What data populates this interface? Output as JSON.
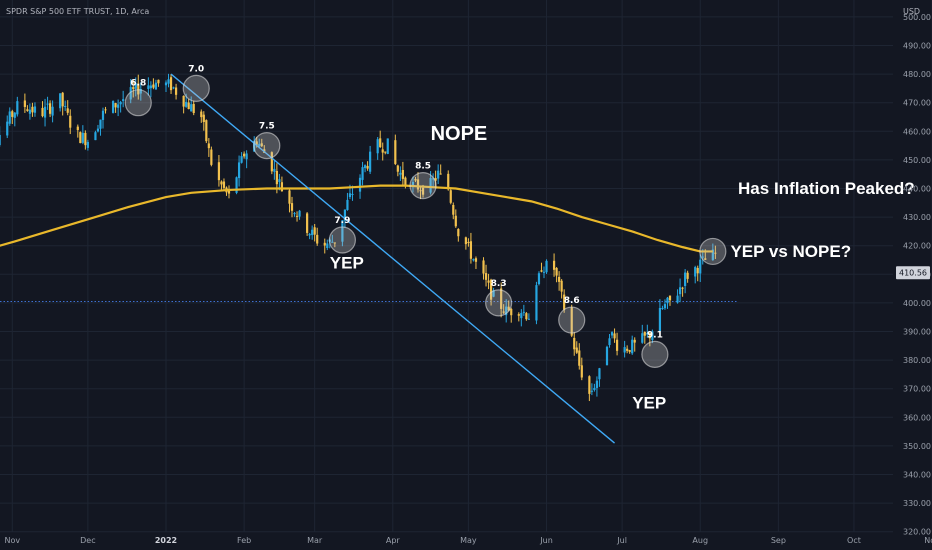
{
  "header": {
    "symbol": "SPDR S&P 500 ETF TRUST, 1D, Arca",
    "currency": "USD"
  },
  "last_price": "410.56",
  "colors": {
    "up": "#26a6e0",
    "down": "#f2c14e",
    "ma": "#e9b82b",
    "trend": "#3fa9f5",
    "dotted": "#3d6fd0"
  },
  "chart_data": {
    "type": "candlestick",
    "y_ticks": [
      "320.00",
      "330.00",
      "340.00",
      "350.00",
      "360.00",
      "370.00",
      "380.00",
      "390.00",
      "400.00",
      "410.00",
      "420.00",
      "430.00",
      "440.00",
      "450.00",
      "460.00",
      "470.00",
      "480.00",
      "490.00",
      "500.00"
    ],
    "ylim": [
      315,
      508
    ],
    "x_ticks": [
      {
        "label": "Nov",
        "day": -61
      },
      {
        "label": "Dec",
        "day": -31
      },
      {
        "label": "2022",
        "day": 0,
        "bold": true
      },
      {
        "label": "Feb",
        "day": 31
      },
      {
        "label": "Mar",
        "day": 59
      },
      {
        "label": "Apr",
        "day": 90
      },
      {
        "label": "May",
        "day": 120
      },
      {
        "label": "Jun",
        "day": 151
      },
      {
        "label": "Jul",
        "day": 181
      },
      {
        "label": "Aug",
        "day": 212
      },
      {
        "label": "Sep",
        "day": 243
      },
      {
        "label": "Oct",
        "day": 273
      },
      {
        "label": "Nov",
        "day": 304
      }
    ],
    "price_path": [
      [
        -74,
        453
      ],
      [
        -66,
        459
      ],
      [
        -58,
        470
      ],
      [
        -50,
        466
      ],
      [
        -42,
        471
      ],
      [
        -36,
        459
      ],
      [
        -31,
        457
      ],
      [
        -25,
        466
      ],
      [
        -19,
        470
      ],
      [
        -11,
        475
      ],
      [
        -5,
        477
      ],
      [
        2,
        476
      ],
      [
        8,
        470
      ],
      [
        14,
        465
      ],
      [
        19,
        445
      ],
      [
        25,
        437
      ],
      [
        31,
        452
      ],
      [
        36,
        457
      ],
      [
        42,
        448
      ],
      [
        47,
        438
      ],
      [
        53,
        430
      ],
      [
        57,
        425
      ],
      [
        62,
        420
      ],
      [
        67,
        422
      ],
      [
        72,
        435
      ],
      [
        78,
        446
      ],
      [
        84,
        455
      ],
      [
        88,
        455
      ],
      [
        92,
        446
      ],
      [
        98,
        441
      ],
      [
        104,
        440
      ],
      [
        108,
        445
      ],
      [
        112,
        440
      ],
      [
        116,
        425
      ],
      [
        120,
        419
      ],
      [
        125,
        410
      ],
      [
        130,
        402
      ],
      [
        135,
        397
      ],
      [
        140,
        398
      ],
      [
        145,
        395
      ],
      [
        149,
        413
      ],
      [
        154,
        412
      ],
      [
        159,
        395
      ],
      [
        164,
        378
      ],
      [
        168,
        368
      ],
      [
        172,
        375
      ],
      [
        176,
        390
      ],
      [
        180,
        384
      ],
      [
        186,
        385
      ],
      [
        192,
        389
      ],
      [
        197,
        398
      ],
      [
        202,
        402
      ],
      [
        206,
        409
      ],
      [
        210,
        412
      ],
      [
        214,
        415
      ],
      [
        218,
        417
      ]
    ],
    "ma_200": [
      [
        -74,
        418
      ],
      [
        -60,
        421.5
      ],
      [
        -45,
        425.5
      ],
      [
        -30,
        429.5
      ],
      [
        -15,
        433.5
      ],
      [
        0,
        437
      ],
      [
        10,
        438.5
      ],
      [
        25,
        439.5
      ],
      [
        40,
        440
      ],
      [
        55,
        440
      ],
      [
        65,
        440
      ],
      [
        75,
        440.5
      ],
      [
        85,
        441
      ],
      [
        95,
        441
      ],
      [
        105,
        440.5
      ],
      [
        115,
        440
      ],
      [
        125,
        438.5
      ],
      [
        135,
        437
      ],
      [
        145,
        435.5
      ],
      [
        155,
        433
      ],
      [
        165,
        430
      ],
      [
        175,
        427.5
      ],
      [
        185,
        425
      ],
      [
        195,
        422
      ],
      [
        205,
        419.5
      ],
      [
        212,
        418
      ],
      [
        217,
        418
      ]
    ],
    "downtrend_line": [
      [
        2,
        480
      ],
      [
        178,
        351
      ]
    ],
    "reference_line": 400.5,
    "cpi_prints": [
      {
        "label": "6.8",
        "day": -11,
        "price": 470
      },
      {
        "label": "7.0",
        "day": 12,
        "price": 475
      },
      {
        "label": "7.5",
        "day": 40,
        "price": 455
      },
      {
        "label": "7.9",
        "day": 70,
        "price": 422
      },
      {
        "label": "8.5",
        "day": 102,
        "price": 441
      },
      {
        "label": "8.3",
        "day": 132,
        "price": 400
      },
      {
        "label": "8.6",
        "day": 161,
        "price": 394
      },
      {
        "label": "9.1",
        "day": 194,
        "price": 382
      },
      {
        "label": "",
        "day": 217,
        "price": 418
      }
    ],
    "annotations": [
      {
        "text": "YEP",
        "day": 65,
        "price": 412,
        "size": "mid"
      },
      {
        "text": "NOPE",
        "day": 105,
        "price": 457,
        "size": "big"
      },
      {
        "text": "Has Inflation Peaked?",
        "day": 227,
        "price": 438,
        "size": "mid"
      },
      {
        "text": "YEP vs NOPE?",
        "day": 224,
        "price": 416,
        "size": "mid"
      },
      {
        "text": "YEP",
        "day": 185,
        "price": 363,
        "size": "mid"
      }
    ]
  }
}
